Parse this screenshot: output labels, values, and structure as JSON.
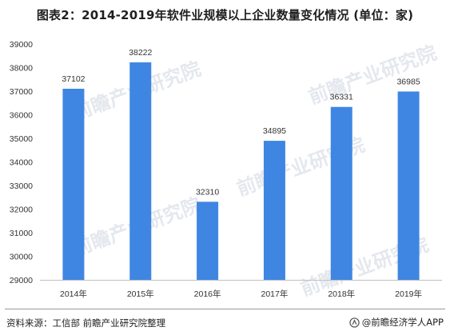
{
  "title": "图表2：2014-2019年软件业规模以上企业数量变化情况 (单位：家)",
  "source": "资料来源：工信部   前瞻产业研究院整理",
  "brand": "@前瞻经济学人APP",
  "watermark": "前瞻产业研究院",
  "colors": {
    "bar": "#3f86e2",
    "axis": "#bfbfbf",
    "text": "#333333",
    "watermark": "#e4e8ee"
  },
  "chart_data": {
    "type": "bar",
    "title": "图表2：2014-2019年软件业规模以上企业数量变化情况 (单位：家)",
    "categories": [
      "2014年",
      "2015年",
      "2016年",
      "2017年",
      "2018年",
      "2019年"
    ],
    "values": [
      37102,
      38222,
      32310,
      34895,
      36331,
      36985
    ],
    "data_labels": [
      "37102",
      "38222",
      "32310",
      "34895",
      "36331",
      "36985"
    ],
    "ylim": [
      29000,
      39000
    ],
    "yticks": [
      29000,
      30000,
      31000,
      32000,
      33000,
      34000,
      35000,
      36000,
      37000,
      38000,
      39000
    ],
    "ytick_labels": [
      "29000",
      "30000",
      "31000",
      "32000",
      "33000",
      "34000",
      "35000",
      "36000",
      "37000",
      "38000",
      "39000"
    ],
    "grid": false,
    "legend": "none"
  }
}
